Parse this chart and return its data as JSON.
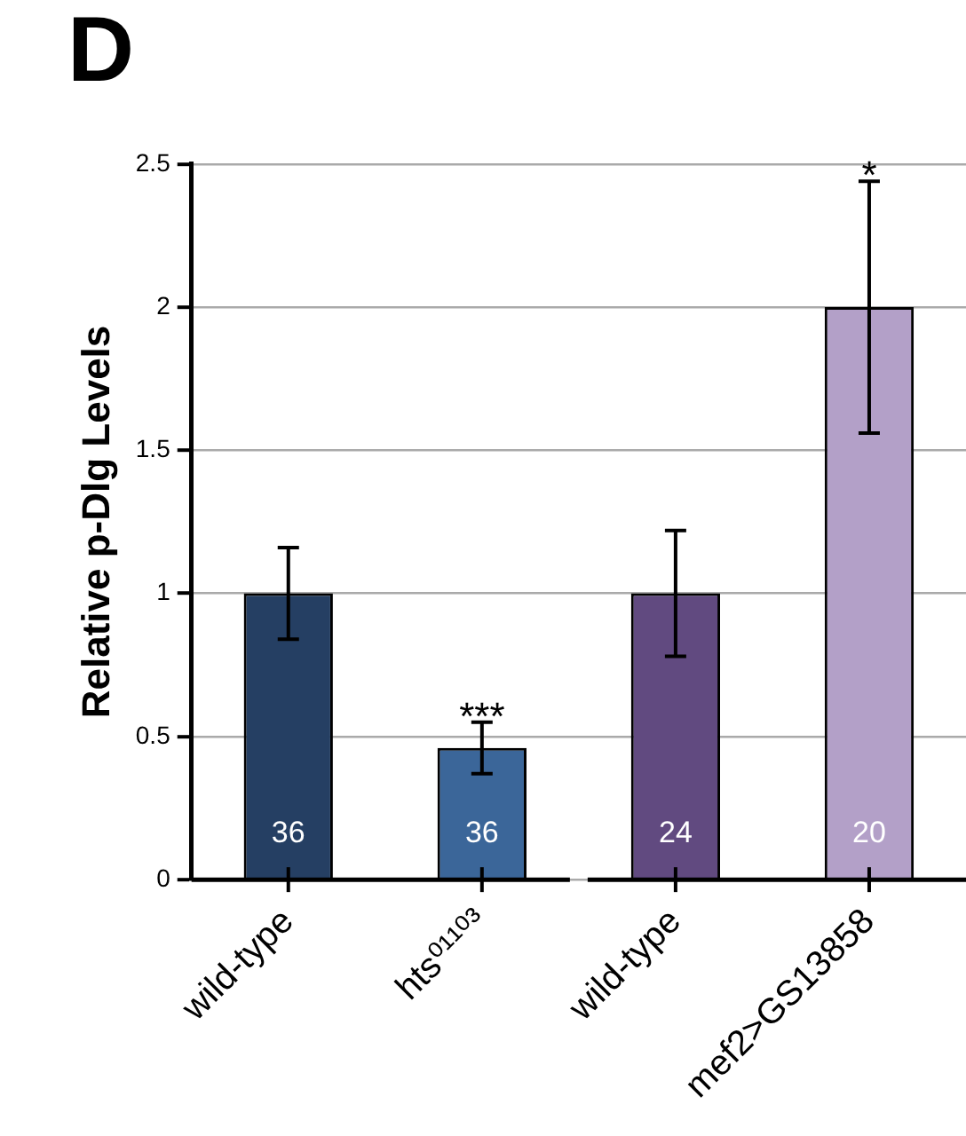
{
  "chart_data": {
    "type": "bar",
    "title": "D",
    "ylabel": "Relative p-Dlg Levels",
    "categories": [
      "wild-type",
      "hts⁰¹¹⁰³",
      "wild-type",
      "mef2>GS13858"
    ],
    "values": [
      1.0,
      0.46,
      1.0,
      2.0
    ],
    "colors": [
      "#253f63",
      "#3b6699",
      "#614a80",
      "#b3a0c8"
    ],
    "errors": [
      0.16,
      0.09,
      0.22,
      0.44
    ],
    "ylim": [
      0,
      2.5
    ],
    "yticks": [
      0,
      0.5,
      1,
      1.5,
      2,
      2.5
    ],
    "grid": "y",
    "annotations": [
      "36",
      "36",
      "24",
      "20",
      "***",
      "*"
    ]
  }
}
